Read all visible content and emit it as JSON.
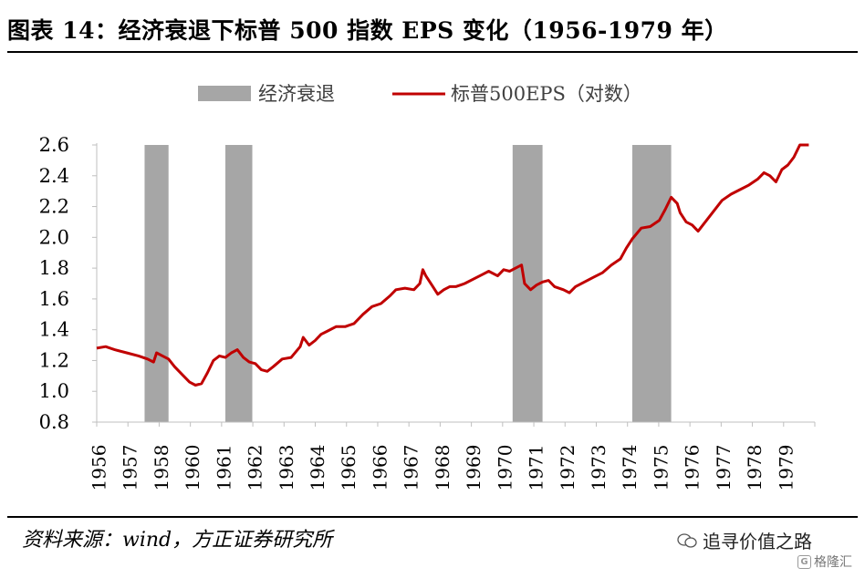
{
  "title": "图表 14：经济衰退下标普 500 指数 EPS 变化（1956-1979 年）",
  "source": "资料来源：wind，方正证券研究所",
  "watermark": "追寻价值之路",
  "watermark2": "格隆汇",
  "chart_data": {
    "type": "line",
    "legend": [
      "经济衰退",
      "标普500EPS（对数）"
    ],
    "legend_position": "top-center",
    "colors": {
      "line": "#c00000",
      "recession": "#a6a6a6"
    },
    "y_ticks": [
      "0.8",
      "1.0",
      "1.2",
      "1.4",
      "1.6",
      "1.8",
      "2.0",
      "2.2",
      "2.4",
      "2.6"
    ],
    "ylim": [
      0.8,
      2.6
    ],
    "x_ticks": [
      "1956",
      "1957",
      "1958",
      "1960",
      "1961",
      "1962",
      "1963",
      "1964",
      "1965",
      "1966",
      "1967",
      "1968",
      "1969",
      "1970",
      "1971",
      "1972",
      "1973",
      "1974",
      "1975",
      "1976",
      "1977",
      "1978",
      "1979"
    ],
    "xlim": [
      1956.0,
      1980.0
    ],
    "grid": false,
    "recessions": [
      [
        1957.6,
        1958.4
      ],
      [
        1960.3,
        1961.2
      ],
      [
        1969.9,
        1970.9
      ],
      [
        1973.9,
        1975.2
      ]
    ],
    "series": [
      {
        "name": "标普500EPS（对数）",
        "points": [
          [
            1956.0,
            1.28
          ],
          [
            1956.3,
            1.29
          ],
          [
            1956.6,
            1.27
          ],
          [
            1957.0,
            1.25
          ],
          [
            1957.4,
            1.23
          ],
          [
            1957.7,
            1.21
          ],
          [
            1957.9,
            1.19
          ],
          [
            1958.0,
            1.25
          ],
          [
            1958.2,
            1.23
          ],
          [
            1958.4,
            1.21
          ],
          [
            1958.6,
            1.16
          ],
          [
            1958.9,
            1.1
          ],
          [
            1959.1,
            1.06
          ],
          [
            1959.3,
            1.04
          ],
          [
            1959.5,
            1.05
          ],
          [
            1959.7,
            1.12
          ],
          [
            1959.9,
            1.2
          ],
          [
            1960.1,
            1.23
          ],
          [
            1960.3,
            1.22
          ],
          [
            1960.5,
            1.25
          ],
          [
            1960.7,
            1.27
          ],
          [
            1960.9,
            1.22
          ],
          [
            1961.1,
            1.19
          ],
          [
            1961.3,
            1.18
          ],
          [
            1961.5,
            1.14
          ],
          [
            1961.7,
            1.13
          ],
          [
            1961.9,
            1.16
          ],
          [
            1962.2,
            1.21
          ],
          [
            1962.5,
            1.22
          ],
          [
            1962.8,
            1.29
          ],
          [
            1962.9,
            1.35
          ],
          [
            1963.1,
            1.3
          ],
          [
            1963.3,
            1.33
          ],
          [
            1963.5,
            1.37
          ],
          [
            1963.7,
            1.39
          ],
          [
            1964.0,
            1.42
          ],
          [
            1964.3,
            1.42
          ],
          [
            1964.6,
            1.44
          ],
          [
            1964.9,
            1.5
          ],
          [
            1965.2,
            1.55
          ],
          [
            1965.5,
            1.57
          ],
          [
            1965.8,
            1.62
          ],
          [
            1966.0,
            1.66
          ],
          [
            1966.3,
            1.67
          ],
          [
            1966.6,
            1.66
          ],
          [
            1966.8,
            1.7
          ],
          [
            1966.9,
            1.79
          ],
          [
            1967.0,
            1.75
          ],
          [
            1967.2,
            1.69
          ],
          [
            1967.4,
            1.63
          ],
          [
            1967.6,
            1.66
          ],
          [
            1967.8,
            1.68
          ],
          [
            1968.0,
            1.68
          ],
          [
            1968.3,
            1.7
          ],
          [
            1968.6,
            1.73
          ],
          [
            1968.9,
            1.76
          ],
          [
            1969.1,
            1.78
          ],
          [
            1969.4,
            1.75
          ],
          [
            1969.6,
            1.79
          ],
          [
            1969.8,
            1.78
          ],
          [
            1970.0,
            1.8
          ],
          [
            1970.2,
            1.82
          ],
          [
            1970.3,
            1.7
          ],
          [
            1970.5,
            1.66
          ],
          [
            1970.7,
            1.69
          ],
          [
            1970.9,
            1.71
          ],
          [
            1971.1,
            1.72
          ],
          [
            1971.3,
            1.68
          ],
          [
            1971.6,
            1.66
          ],
          [
            1971.8,
            1.64
          ],
          [
            1972.0,
            1.68
          ],
          [
            1972.3,
            1.71
          ],
          [
            1972.6,
            1.74
          ],
          [
            1972.9,
            1.77
          ],
          [
            1973.2,
            1.82
          ],
          [
            1973.5,
            1.86
          ],
          [
            1973.7,
            1.93
          ],
          [
            1973.9,
            1.99
          ],
          [
            1974.2,
            2.06
          ],
          [
            1974.5,
            2.07
          ],
          [
            1974.8,
            2.11
          ],
          [
            1975.0,
            2.18
          ],
          [
            1975.2,
            2.26
          ],
          [
            1975.4,
            2.22
          ],
          [
            1975.5,
            2.16
          ],
          [
            1975.7,
            2.1
          ],
          [
            1975.9,
            2.08
          ],
          [
            1976.1,
            2.04
          ],
          [
            1976.3,
            2.09
          ],
          [
            1976.5,
            2.14
          ],
          [
            1976.7,
            2.19
          ],
          [
            1976.9,
            2.24
          ],
          [
            1977.2,
            2.28
          ],
          [
            1977.5,
            2.31
          ],
          [
            1977.8,
            2.34
          ],
          [
            1978.1,
            2.38
          ],
          [
            1978.3,
            2.42
          ],
          [
            1978.5,
            2.4
          ],
          [
            1978.7,
            2.36
          ],
          [
            1978.9,
            2.44
          ],
          [
            1979.1,
            2.47
          ],
          [
            1979.3,
            2.52
          ],
          [
            1979.5,
            2.6
          ],
          [
            1979.8,
            2.62
          ]
        ]
      }
    ]
  }
}
